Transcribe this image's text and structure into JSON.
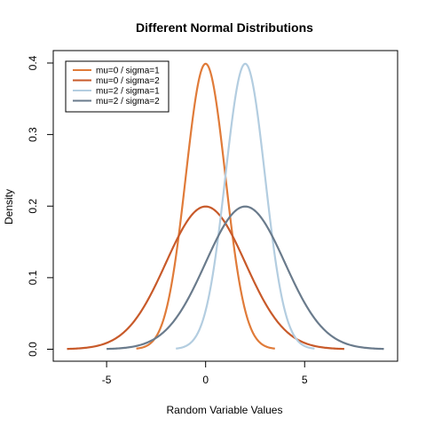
{
  "chart_data": {
    "type": "line",
    "title": "Different Normal Distributions",
    "xlabel": "Random Variable Values",
    "ylabel": "Density",
    "xlim": [
      -7.0,
      9.0
    ],
    "ylim": [
      0,
      0.4
    ],
    "xticks": [
      -5,
      0,
      5
    ],
    "yticks": [
      0.0,
      0.1,
      0.2,
      0.3,
      0.4
    ],
    "ytick_labels": [
      "0.0",
      "0.1",
      "0.2",
      "0.3",
      "0.4"
    ],
    "grid": false,
    "legend": "top-left",
    "series": [
      {
        "name": "mu=0 / sigma=1",
        "mu": 0,
        "sigma": 1,
        "x_range": [
          -3.5,
          3.5
        ],
        "color": "#e07b39"
      },
      {
        "name": "mu=0 / sigma=2",
        "mu": 0,
        "sigma": 2,
        "x_range": [
          -7,
          7
        ],
        "color": "#c85a2a"
      },
      {
        "name": "mu=2 / sigma=1",
        "mu": 2,
        "sigma": 1,
        "x_range": [
          -1.5,
          5.5
        ],
        "color": "#b3cde0"
      },
      {
        "name": "mu=2 / sigma=2",
        "mu": 2,
        "sigma": 2,
        "x_range": [
          -5,
          9
        ],
        "color": "#6a7b8c"
      }
    ]
  }
}
